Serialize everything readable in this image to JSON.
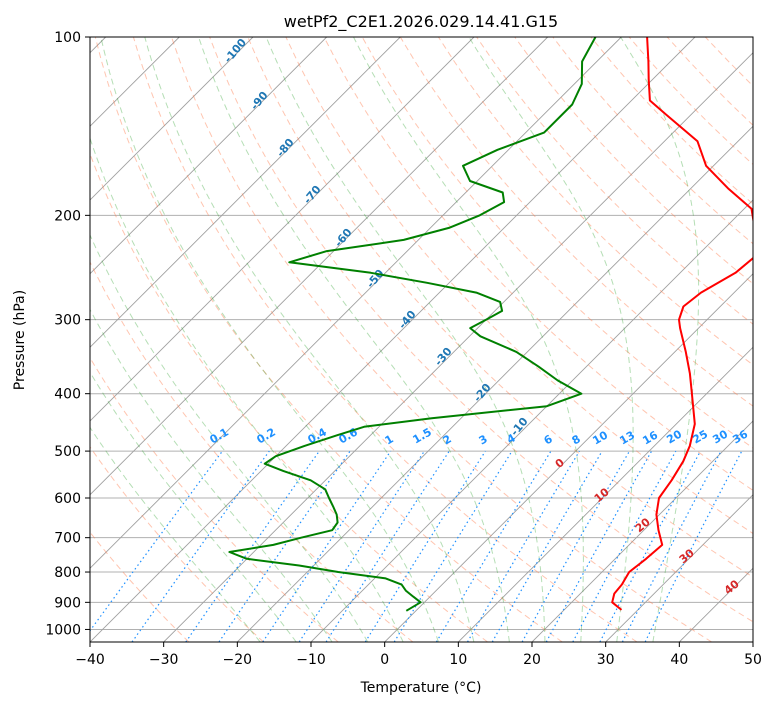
{
  "chart_data": {
    "type": "line",
    "title": "wetPf2_C2E1.2026.029.14.41.G15",
    "xlabel": "Temperature (°C)",
    "ylabel": "Pressure (hPa)",
    "xlim": [
      -40,
      50
    ],
    "ylim": [
      1050,
      100
    ],
    "x_ticks": [
      -40,
      -30,
      -20,
      -10,
      0,
      10,
      20,
      30,
      40,
      50
    ],
    "x_tick_labels": [
      "−40",
      "−30",
      "−20",
      "−10",
      "0",
      "10",
      "20",
      "30",
      "40",
      "50"
    ],
    "y_ticks": [
      100,
      200,
      300,
      400,
      500,
      600,
      700,
      800,
      900,
      1000
    ],
    "y_tick_labels": [
      "100",
      "200",
      "300",
      "400",
      "500",
      "600",
      "700",
      "800",
      "900",
      "1000"
    ],
    "skew_degrees": 45,
    "colors": {
      "temperature": "#ff0000",
      "dewpoint": "#008000",
      "dry_adiabat": "#ff7f50",
      "moist_adiabat": "#2ca02c",
      "mixing_ratio": "#1e90ff",
      "isotherm": "#808080",
      "dry_label": "#1f77b4",
      "moist_label": "#d62728",
      "mr_label": "#1e90ff"
    },
    "series": [
      {
        "name": "Temperature",
        "points": [
          [
            927,
            27.8
          ],
          [
            900,
            25.5
          ],
          [
            870,
            24.6
          ],
          [
            840,
            24.4
          ],
          [
            800,
            23.7
          ],
          [
            760,
            24.2
          ],
          [
            720,
            24.5
          ],
          [
            680,
            22.0
          ],
          [
            640,
            19.6
          ],
          [
            600,
            17.7
          ],
          [
            560,
            17.0
          ],
          [
            520,
            16.0
          ],
          [
            490,
            14.8
          ],
          [
            450,
            12.5
          ],
          [
            400,
            8.0
          ],
          [
            370,
            5.0
          ],
          [
            340,
            1.5
          ],
          [
            310,
            -2.5
          ],
          [
            300,
            -3.8
          ],
          [
            285,
            -5.0
          ],
          [
            270,
            -4.5
          ],
          [
            250,
            -2.5
          ],
          [
            233,
            -2.0
          ],
          [
            210,
            -6.0
          ],
          [
            195,
            -9.0
          ],
          [
            180,
            -15.0
          ],
          [
            165,
            -21.0
          ],
          [
            150,
            -25.5
          ],
          [
            135,
            -33.5
          ],
          [
            128,
            -37.5
          ],
          [
            118,
            -40.5
          ],
          [
            110,
            -43.0
          ],
          [
            100,
            -46.5
          ]
        ]
      },
      {
        "name": "Dewpoint",
        "points": [
          [
            930,
            -1.3
          ],
          [
            900,
            -0.5
          ],
          [
            880,
            -2.3
          ],
          [
            860,
            -4.1
          ],
          [
            840,
            -5.5
          ],
          [
            820,
            -8.5
          ],
          [
            800,
            -15.8
          ],
          [
            780,
            -22.0
          ],
          [
            760,
            -30.0
          ],
          [
            740,
            -33.3
          ],
          [
            720,
            -28.3
          ],
          [
            700,
            -25.5
          ],
          [
            680,
            -22.3
          ],
          [
            660,
            -22.6
          ],
          [
            640,
            -23.8
          ],
          [
            620,
            -25.4
          ],
          [
            600,
            -27.1
          ],
          [
            580,
            -28.8
          ],
          [
            560,
            -32.0
          ],
          [
            540,
            -37.0
          ],
          [
            525,
            -40.5
          ],
          [
            510,
            -40.0
          ],
          [
            490,
            -37.5
          ],
          [
            470,
            -34.5
          ],
          [
            455,
            -32.0
          ],
          [
            440,
            -24.0
          ],
          [
            420,
            -10.0
          ],
          [
            400,
            -7.0
          ],
          [
            380,
            -12.0
          ],
          [
            360,
            -16.5
          ],
          [
            340,
            -21.5
          ],
          [
            320,
            -28.5
          ],
          [
            310,
            -31.0
          ],
          [
            300,
            -30.0
          ],
          [
            290,
            -29.0
          ],
          [
            280,
            -30.5
          ],
          [
            270,
            -35.0
          ],
          [
            260,
            -43.0
          ],
          [
            250,
            -52.0
          ],
          [
            240,
            -64.5
          ],
          [
            230,
            -61.0
          ],
          [
            220,
            -52.0
          ],
          [
            210,
            -47.5
          ],
          [
            200,
            -45.0
          ],
          [
            190,
            -43.5
          ],
          [
            183,
            -45.0
          ],
          [
            175,
            -51.0
          ],
          [
            165,
            -54.0
          ],
          [
            155,
            -51.5
          ],
          [
            145,
            -47.5
          ],
          [
            130,
            -47.5
          ],
          [
            120,
            -49.0
          ],
          [
            110,
            -52.0
          ],
          [
            100,
            -53.5
          ]
        ]
      }
    ],
    "background_lines": {
      "dry_adiabats_c": [
        -30,
        -20,
        -10,
        0,
        10,
        20,
        30,
        40,
        50,
        60,
        70,
        80,
        90,
        100,
        110,
        120,
        130,
        140,
        150,
        160,
        170,
        180
      ],
      "moist_adiabats_c": [
        -20,
        -15,
        -10,
        -5,
        0,
        5,
        10,
        15,
        20,
        25,
        30,
        35
      ],
      "mixing_ratios_gkg": [
        0.1,
        0.2,
        0.4,
        0.6,
        1,
        1.5,
        2,
        3,
        4,
        6,
        8,
        10,
        13,
        16,
        20,
        25,
        30,
        36
      ]
    },
    "dry_adiabat_labels": [
      "-100",
      "-90",
      "-80",
      "-70",
      "-60",
      "-50",
      "-40",
      "-30",
      "-20",
      "-10"
    ],
    "moist_adiabat_labels": [
      "0",
      "10",
      "20",
      "30",
      "40"
    ],
    "mixing_ratio_labels": [
      "0.1",
      "0.2",
      "0.4",
      "0.6",
      "1",
      "1.5",
      "2",
      "3",
      "4",
      "6",
      "8",
      "10",
      "13",
      "16",
      "20",
      "25",
      "30",
      "36"
    ]
  }
}
